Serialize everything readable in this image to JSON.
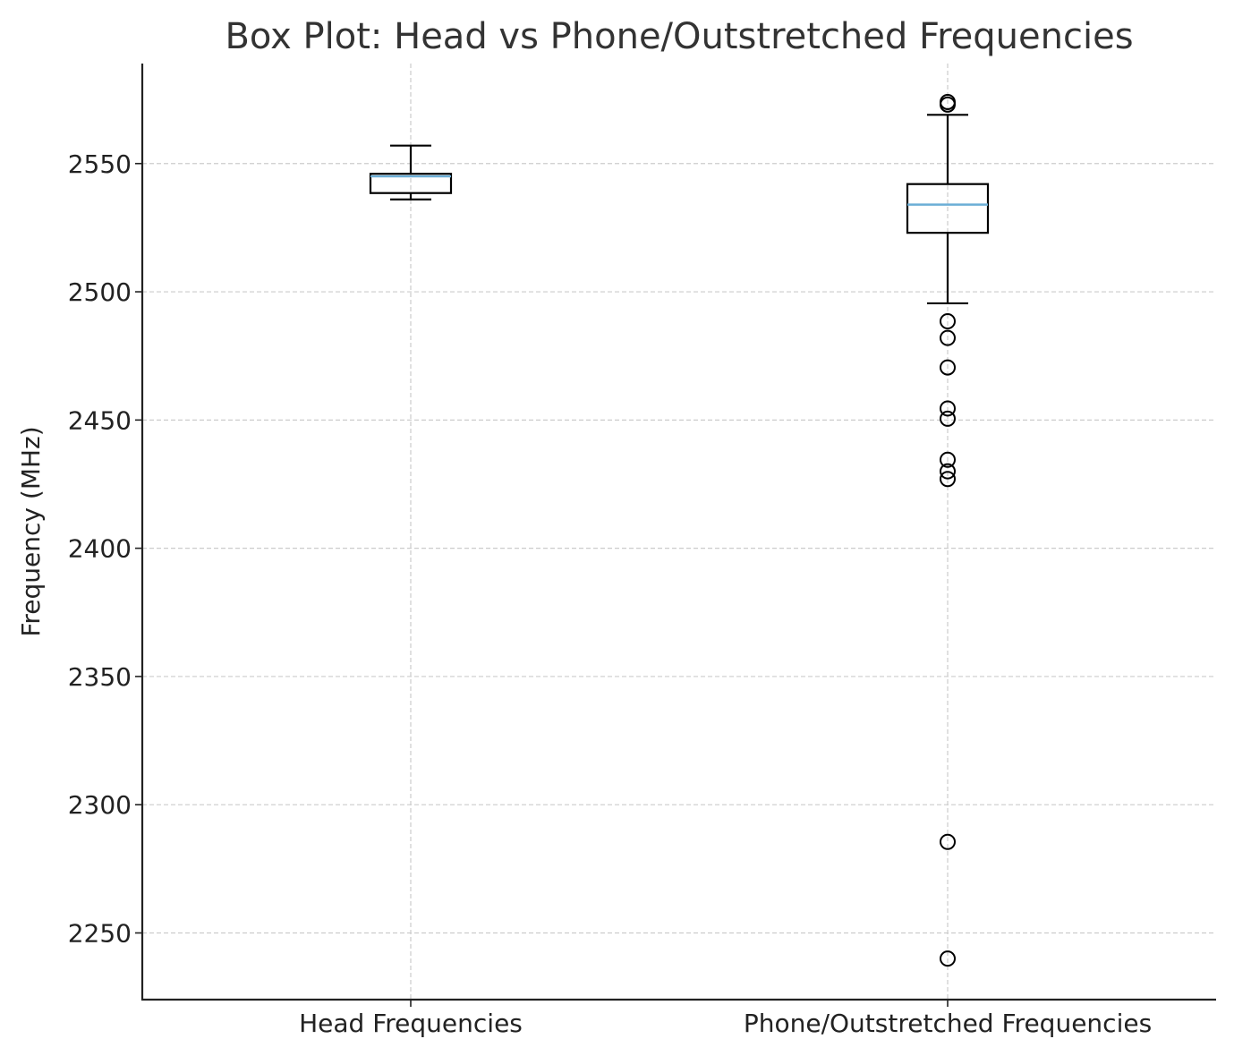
{
  "chart_data": {
    "type": "box",
    "title": "Box Plot: Head vs Phone/Outstretched Frequencies",
    "xlabel": "",
    "ylabel": "Frequency (MHz)",
    "ylim": [
      2224,
      2589
    ],
    "yticks": [
      2250,
      2300,
      2350,
      2400,
      2450,
      2500,
      2550
    ],
    "grid": true,
    "categories": [
      "Head Frequencies",
      "Phone/Outstretched Frequencies"
    ],
    "series": [
      {
        "category": "Head Frequencies",
        "whisker_low": 2536,
        "q1": 2538.5,
        "median": 2545,
        "q3": 2546,
        "whisker_high": 2557,
        "outliers": []
      },
      {
        "category": "Phone/Outstretched Frequencies",
        "whisker_low": 2495.5,
        "q1": 2523,
        "median": 2534,
        "q3": 2542,
        "whisker_high": 2569,
        "outliers": [
          2574,
          2573,
          2488.5,
          2482,
          2470.5,
          2454.5,
          2450.5,
          2434.5,
          2430,
          2427,
          2285.5,
          2240
        ]
      }
    ]
  }
}
